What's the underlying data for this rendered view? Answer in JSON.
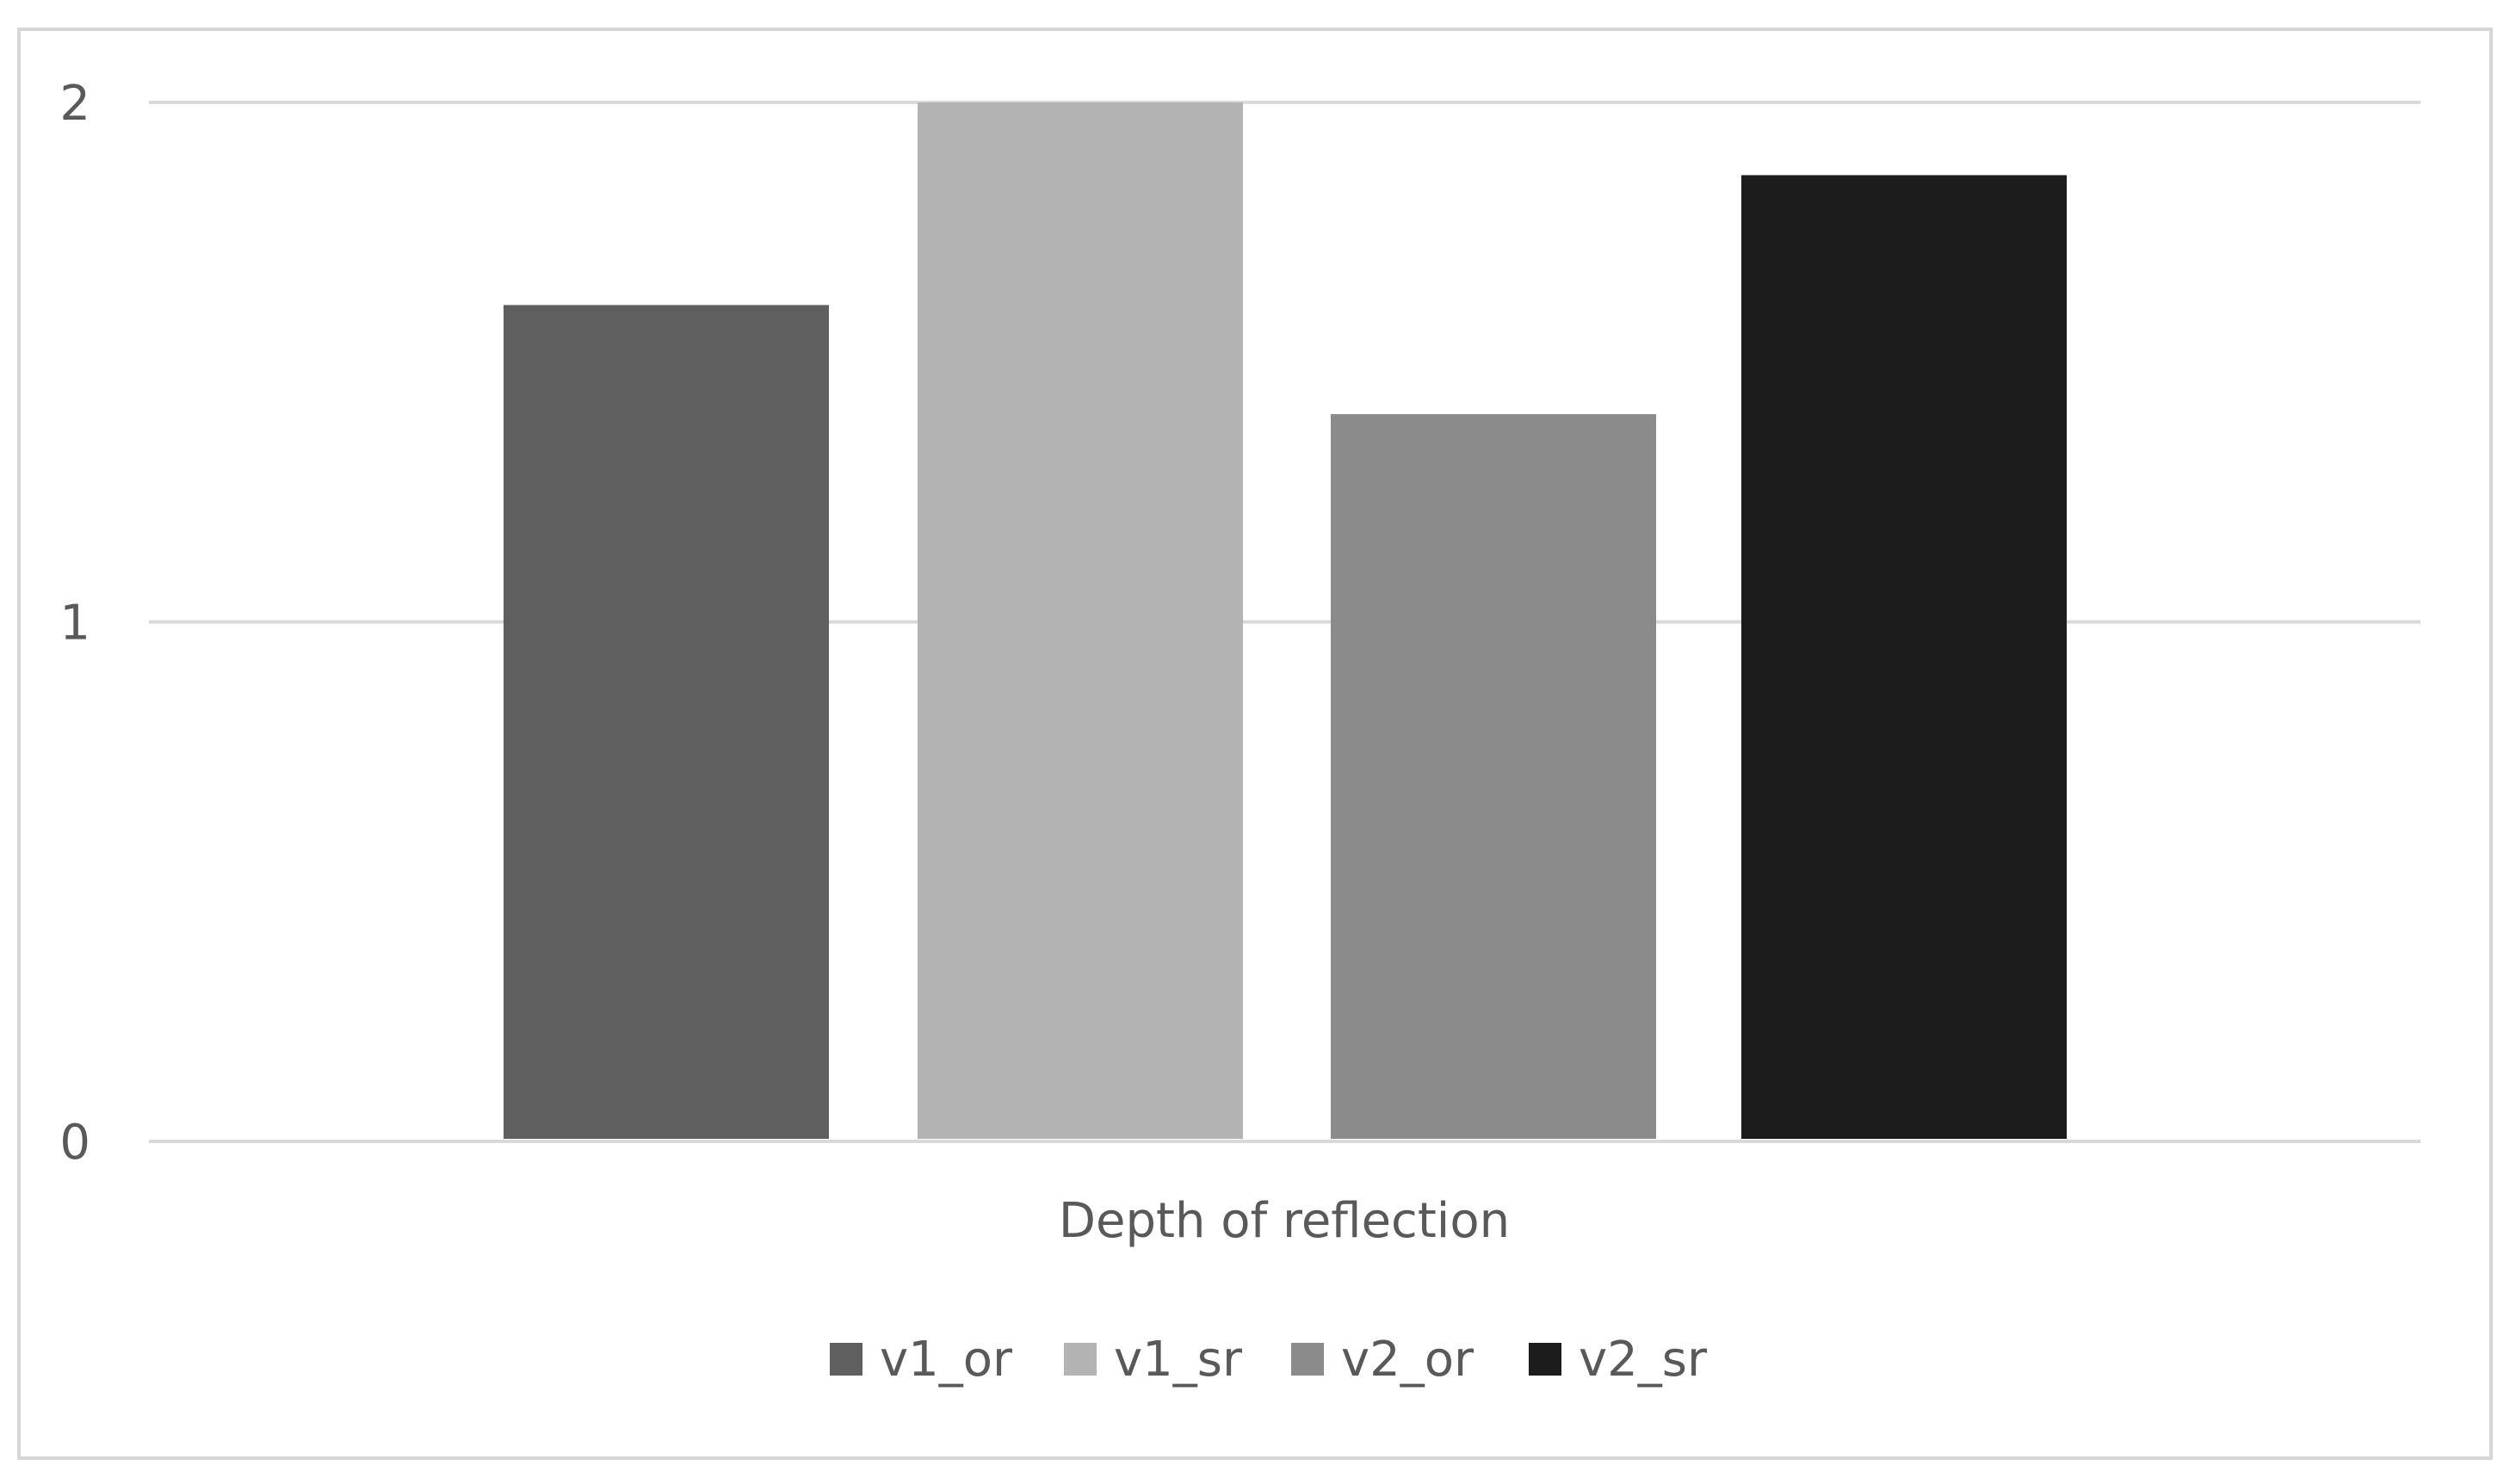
{
  "chart_data": {
    "type": "bar",
    "categories": [
      "Depth of reflection"
    ],
    "series": [
      {
        "name": "v1_or",
        "values": [
          1.61
        ],
        "color": "#5f5f5f"
      },
      {
        "name": "v1_sr",
        "values": [
          2.0
        ],
        "color": "#b3b3b3"
      },
      {
        "name": "v2_or",
        "values": [
          1.4
        ],
        "color": "#8b8b8b"
      },
      {
        "name": "v2_sr",
        "values": [
          1.86
        ],
        "color": "#1c1c1c"
      }
    ],
    "yticks": [
      "0",
      "1",
      "2"
    ],
    "ylim": [
      0,
      2
    ],
    "grid": true,
    "legend_position": "bottom"
  }
}
